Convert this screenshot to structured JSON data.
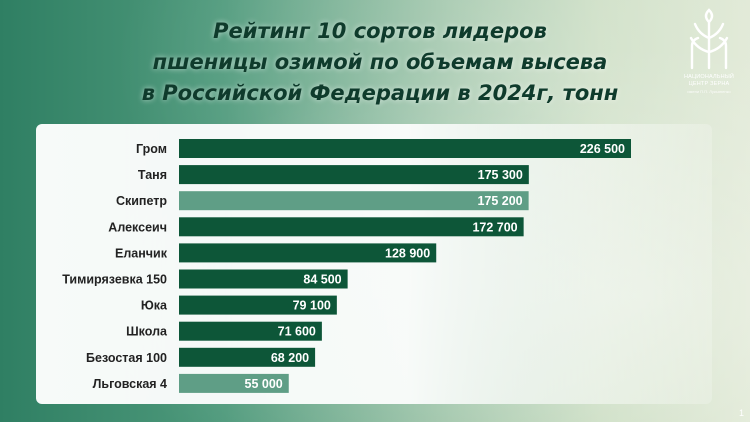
{
  "slide": {
    "title_lines": [
      "Рейтинг 10 сортов лидеров",
      "пшеницы озимой по объемам высева",
      "в Российской Федерации в 2024г, тонн"
    ],
    "logo": {
      "line1": "НАЦИОНАЛЬНЫЙ",
      "line2": "ЦЕНТР ЗЕРНА",
      "line3": "имени П.П. Лукьяненко",
      "icon": "wheat-logo-icon"
    },
    "page_number": "1"
  },
  "colors": {
    "bar_dark": "#0d5638",
    "bar_light": "#5f9e86"
  },
  "chart_data": {
    "type": "bar",
    "orientation": "horizontal",
    "title": "Рейтинг 10 сортов лидеров пшеницы озимой по объемам высева в Российской Федерации в 2024г, тонн",
    "categories": [
      "Гром",
      "Таня",
      "Скипетр",
      "Алексеич",
      "Еланчик",
      "Тимирязевка 150",
      "Юка",
      "Школа",
      "Безостая 100",
      "Льговская 4"
    ],
    "values": [
      226500,
      175300,
      175200,
      172700,
      128900,
      84500,
      79100,
      71600,
      68200,
      55000
    ],
    "value_labels": [
      "226 500",
      "175 300",
      "175 200",
      "172 700",
      "128 900",
      "84 500",
      "79 100",
      "71 600",
      "68 200",
      "55 000"
    ],
    "highlighted": [
      false,
      false,
      true,
      false,
      false,
      false,
      false,
      false,
      false,
      true
    ],
    "xlabel": "",
    "ylabel": "",
    "xlim": [
      0,
      226500
    ],
    "grid": false,
    "legend": "none"
  }
}
